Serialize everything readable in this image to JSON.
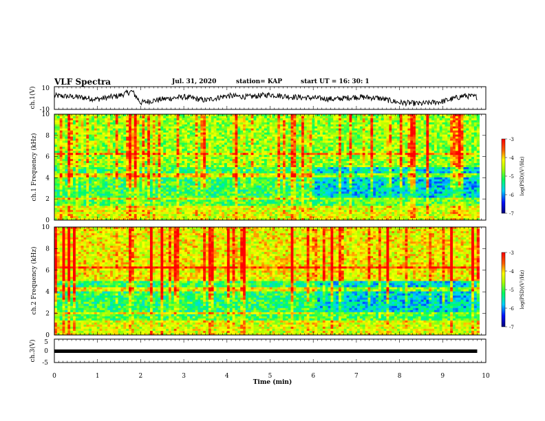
{
  "header": {
    "title": "VLF Spectra",
    "date": "Jul. 31, 2020",
    "station": "station= KAP",
    "start": "start  UT =   16: 30: 1"
  },
  "chart_data": [
    {
      "type": "line",
      "title": "",
      "ylabel": "ch.1(V)",
      "ytick_labels": [
        "10",
        "-10"
      ],
      "xlim": [
        0,
        10
      ],
      "ylim": [
        -10,
        10
      ],
      "description_series": "waveform trace fluctuating mostly between about -6 and 8 V",
      "x": [
        0,
        0.5,
        1,
        1.5,
        1.8,
        2,
        2.5,
        3,
        3.5,
        4,
        4.5,
        5,
        5.5,
        6,
        6.5,
        7,
        7.5,
        8,
        8.5,
        9,
        9.5,
        9.8
      ],
      "y": [
        2,
        1,
        -1,
        2,
        6,
        -4,
        -1,
        1,
        -2,
        2,
        1,
        3,
        1,
        0,
        -1,
        1,
        0,
        -4,
        -5,
        -3,
        2,
        1
      ]
    },
    {
      "type": "heatmap",
      "ylabel": "ch.1 Frequency (kHz)",
      "ytick_labels": [
        "0",
        "2",
        "4",
        "6",
        "8",
        "10"
      ],
      "xlim": [
        0,
        10
      ],
      "ylim": [
        0,
        10
      ],
      "colorbar": {
        "label": "log(PSD)(V²/Hz)",
        "ticks": [
          "-3",
          "-4",
          "-5",
          "-6",
          "-7"
        ],
        "range": [
          -7,
          -3
        ]
      }
    },
    {
      "type": "heatmap",
      "ylabel": "ch.2 Frequency (kHz)",
      "ytick_labels": [
        "0",
        "2",
        "4",
        "6",
        "8",
        "10"
      ],
      "xlim": [
        0,
        10
      ],
      "ylim": [
        0,
        10
      ],
      "colorbar": {
        "label": "log(PSD)(V²/Hz)",
        "ticks": [
          "-3",
          "-4",
          "-5",
          "-6",
          "-7"
        ],
        "range": [
          -7,
          -3
        ]
      }
    },
    {
      "type": "line",
      "ylabel": "ch.3(V)",
      "ytick_labels": [
        "5",
        "0",
        "-5"
      ],
      "xlim": [
        0,
        10
      ],
      "ylim": [
        -5,
        5
      ],
      "x": [
        0,
        9.8
      ],
      "y": [
        -1,
        -1
      ]
    }
  ],
  "xaxis": {
    "label": "Time (min)",
    "ticks": [
      "0",
      "1",
      "2",
      "3",
      "4",
      "5",
      "6",
      "7",
      "8",
      "9",
      "10"
    ]
  }
}
